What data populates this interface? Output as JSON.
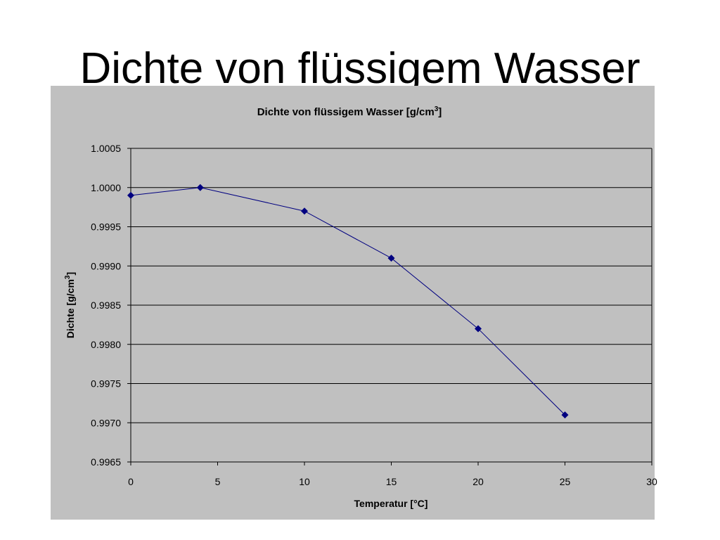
{
  "slide": {
    "title": "Dichte von flüssigem Wasser"
  },
  "chart_data": {
    "type": "line",
    "title": "Dichte von flüssigem Wasser  [g/cm",
    "title_sup": "3",
    "title_end": "]",
    "xlabel": "Temperatur [°C]",
    "ylabel": "Dichte [g/cm",
    "ylabel_sup": "3",
    "ylabel_end": "]",
    "xlim": [
      0,
      30
    ],
    "ylim": [
      0.9965,
      1.0005
    ],
    "x_ticks": [
      "0",
      "5",
      "10",
      "15",
      "20",
      "25",
      "30"
    ],
    "x_tick_values": [
      0,
      5,
      10,
      15,
      20,
      25,
      30
    ],
    "y_ticks": [
      "0.9965",
      "0.9970",
      "0.9975",
      "0.9980",
      "0.9985",
      "0.9990",
      "0.9995",
      "1.0000",
      "1.0005"
    ],
    "y_tick_values": [
      0.9965,
      0.997,
      0.9975,
      0.998,
      0.9985,
      0.999,
      0.9995,
      1.0,
      1.0005
    ],
    "grid": "horizontal",
    "series": [
      {
        "x": [
          0,
          4,
          10,
          15,
          20,
          25
        ],
        "y": [
          0.9999,
          1.0,
          0.9997,
          0.9991,
          0.9982,
          0.9971
        ]
      }
    ],
    "colors": {
      "panel_bg": "#c0c0c0",
      "plot_bg": "#c0c0c0",
      "line": "#000080",
      "marker": "#000080",
      "grid": "#000000"
    }
  }
}
